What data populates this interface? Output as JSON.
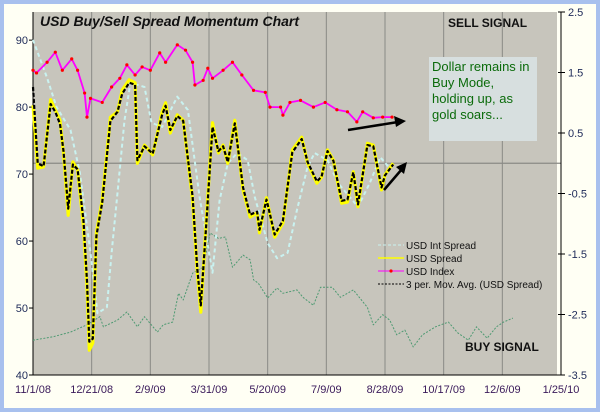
{
  "chart_data": {
    "type": "line",
    "title": "USD Buy/Sell Spread Momentum Chart",
    "x_axis": {
      "type": "date",
      "range": [
        "2008-11-01",
        "2010-01-25"
      ],
      "tick_labels": [
        "11/1/08",
        "12/21/08",
        "2/9/09",
        "3/31/09",
        "5/20/09",
        "7/9/09",
        "8/28/09",
        "10/17/09",
        "12/6/09",
        "1/25/10"
      ],
      "grid": true
    },
    "y_axis_left": {
      "range": [
        40,
        94.2
      ],
      "tick_labels": [
        "40",
        "50",
        "60",
        "70",
        "80",
        "90"
      ]
    },
    "y_axis_right": {
      "range": [
        -3.5,
        2.5
      ],
      "tick_labels": [
        "-3.5",
        "-2.5",
        "-1.5",
        "-0.5",
        "0.5",
        "1.5",
        "2.5"
      ],
      "reference_line": 0
    },
    "legend": {
      "placement": "bottom-right"
    },
    "annotations": {
      "sell": "SELL SIGNAL",
      "buy": "BUY SIGNAL",
      "note": "Dollar remains in Buy Mode, holding up, as gold soars..."
    },
    "series": [
      {
        "name": "USD Int Spread",
        "axis": "right",
        "color": "#c9f2f0",
        "style": "dashed",
        "x": [
          "2008-11-01",
          "2008-11-13",
          "2008-11-21",
          "2008-12-03",
          "2008-12-11",
          "2008-12-20",
          "2008-12-26",
          "2009-01-03",
          "2009-01-07",
          "2009-01-12",
          "2009-01-18",
          "2009-01-23",
          "2009-02-04",
          "2009-02-10",
          "2009-02-19",
          "2009-03-04",
          "2009-03-13",
          "2009-03-23",
          "2009-04-03",
          "2009-04-09",
          "2009-04-16",
          "2009-04-24",
          "2009-05-03",
          "2009-05-09",
          "2009-05-20",
          "2009-05-28",
          "2009-06-06",
          "2009-06-14",
          "2009-06-23",
          "2009-06-29",
          "2009-07-10",
          "2009-07-19",
          "2009-07-29",
          "2009-08-05",
          "2009-08-15",
          "2009-08-24",
          "2009-08-31"
        ],
        "y": [
          2.04,
          1.41,
          0.93,
          0.55,
          -0.16,
          -1.48,
          -2.48,
          -2.38,
          -1.48,
          -0.49,
          0.71,
          1.33,
          1.26,
          0.67,
          0.6,
          1.1,
          0.88,
          -0.56,
          -1.81,
          -0.61,
          0.0,
          0.17,
          0.05,
          -0.56,
          -1.32,
          -1.57,
          -1.48,
          -0.77,
          -0.06,
          0.17,
          0.05,
          -0.33,
          -0.56,
          -0.72,
          -0.33,
          0.1,
          -0.06
        ]
      },
      {
        "name": "USD Spread",
        "axis": "right",
        "color": "#ffff00",
        "style": "solid",
        "x": [
          "2008-11-01",
          "2008-11-05",
          "2008-11-10",
          "2008-11-16",
          "2008-11-20",
          "2008-11-24",
          "2008-11-27",
          "2008-12-01",
          "2008-12-05",
          "2008-12-09",
          "2008-12-14",
          "2008-12-17",
          "2008-12-19",
          "2008-12-22",
          "2008-12-25",
          "2008-12-30",
          "2009-01-06",
          "2009-01-12",
          "2009-01-16",
          "2009-01-22",
          "2009-01-27",
          "2009-01-29",
          "2009-02-04",
          "2009-02-11",
          "2009-02-19",
          "2009-02-22",
          "2009-02-26",
          "2009-03-04",
          "2009-03-09",
          "2009-03-17",
          "2009-03-21",
          "2009-03-24",
          "2009-03-28",
          "2009-04-03",
          "2009-04-08",
          "2009-04-12",
          "2009-04-16",
          "2009-04-22",
          "2009-04-29",
          "2009-05-05",
          "2009-05-11",
          "2009-05-13",
          "2009-05-19",
          "2009-05-26",
          "2009-06-02",
          "2009-06-10",
          "2009-06-18",
          "2009-06-23",
          "2009-07-01",
          "2009-07-05",
          "2009-07-10",
          "2009-07-15",
          "2009-07-22",
          "2009-07-27",
          "2009-08-01",
          "2009-08-05",
          "2009-08-13",
          "2009-08-18",
          "2009-08-25",
          "2009-08-28",
          "2009-09-04"
        ],
        "y": [
          0.96,
          -0.08,
          -0.06,
          1.05,
          0.88,
          0.71,
          0.17,
          -0.86,
          0.02,
          -0.11,
          -1.05,
          -2.05,
          -3.09,
          -2.97,
          -1.15,
          -0.61,
          0.76,
          0.85,
          1.21,
          1.38,
          1.33,
          0.0,
          0.3,
          0.14,
          0.85,
          1.0,
          0.5,
          0.8,
          0.71,
          -0.61,
          -1.81,
          -2.46,
          -1.15,
          0.67,
          0.17,
          0.3,
          0.0,
          0.71,
          -0.44,
          -0.89,
          -0.82,
          -1.15,
          -0.57,
          -1.22,
          -0.99,
          0.22,
          0.43,
          0.0,
          -0.33,
          -0.23,
          0.22,
          0.05,
          -0.66,
          -0.64,
          -0.14,
          -0.72,
          0.33,
          0.3,
          -0.44,
          -0.19,
          0.0
        ]
      },
      {
        "name": "USD Index",
        "axis": "left",
        "color": "#ff00ff",
        "marker_color": "#ff0000",
        "style": "solid-markers",
        "x": [
          "2008-11-01",
          "2008-11-04",
          "2008-11-13",
          "2008-11-20",
          "2008-11-26",
          "2008-12-04",
          "2008-12-09",
          "2008-12-15",
          "2008-12-17",
          "2008-12-20",
          "2008-12-30",
          "2009-01-07",
          "2009-01-14",
          "2009-01-20",
          "2009-01-27",
          "2009-02-02",
          "2009-02-09",
          "2009-02-17",
          "2009-02-22",
          "2009-03-04",
          "2009-03-11",
          "2009-03-17",
          "2009-03-19",
          "2009-03-26",
          "2009-03-30",
          "2009-04-03",
          "2009-04-12",
          "2009-04-20",
          "2009-04-28",
          "2009-05-08",
          "2009-05-18",
          "2009-05-22",
          "2009-05-31",
          "2009-06-02",
          "2009-06-08",
          "2009-06-17",
          "2009-06-28",
          "2009-07-08",
          "2009-07-18",
          "2009-07-27",
          "2009-08-04",
          "2009-08-09",
          "2009-08-18",
          "2009-08-26",
          "2009-09-03"
        ],
        "y": [
          85.5,
          85.1,
          86.7,
          88.2,
          85.5,
          87.2,
          85.5,
          82.1,
          78.5,
          81.3,
          80.7,
          83.0,
          84.3,
          86.3,
          84.8,
          86.0,
          85.5,
          88.1,
          86.7,
          89.3,
          88.5,
          86.7,
          83.3,
          84.0,
          85.8,
          84.3,
          85.5,
          86.7,
          84.8,
          82.5,
          82.2,
          80.0,
          80.0,
          78.8,
          80.7,
          81.0,
          80.0,
          80.7,
          79.6,
          79.3,
          77.8,
          79.3,
          78.4,
          78.5,
          78.5
        ]
      },
      {
        "name": "3 per. Mov. Avg. (USD Spread)",
        "axis": "right",
        "color": "#000000",
        "style": "dashed",
        "x": [
          "2008-11-01",
          "2008-11-05",
          "2008-11-10",
          "2008-11-16",
          "2008-11-20",
          "2008-11-24",
          "2008-11-27",
          "2008-12-01",
          "2008-12-05",
          "2008-12-09",
          "2008-12-14",
          "2008-12-17",
          "2008-12-19",
          "2008-12-22",
          "2008-12-25",
          "2008-12-30",
          "2009-01-06",
          "2009-01-12",
          "2009-01-16",
          "2009-01-22",
          "2009-01-27",
          "2009-01-29",
          "2009-02-04",
          "2009-02-11",
          "2009-02-19",
          "2009-02-22",
          "2009-02-26",
          "2009-03-04",
          "2009-03-09",
          "2009-03-17",
          "2009-03-21",
          "2009-03-24",
          "2009-03-28",
          "2009-04-03",
          "2009-04-08",
          "2009-04-12",
          "2009-04-16",
          "2009-04-22",
          "2009-04-29",
          "2009-05-05",
          "2009-05-11",
          "2009-05-13",
          "2009-05-19",
          "2009-05-26",
          "2009-06-02",
          "2009-06-10",
          "2009-06-18",
          "2009-06-23",
          "2009-07-01",
          "2009-07-05",
          "2009-07-10",
          "2009-07-15",
          "2009-07-22",
          "2009-07-27",
          "2009-08-01",
          "2009-08-05",
          "2009-08-13",
          "2009-08-18",
          "2009-08-25",
          "2009-08-28",
          "2009-09-04"
        ],
        "y": [
          1.26,
          0.0,
          -0.05,
          0.98,
          0.85,
          0.65,
          0.2,
          -0.75,
          -0.02,
          -0.1,
          -0.95,
          -1.95,
          -2.95,
          -2.9,
          -1.2,
          -0.65,
          0.7,
          0.85,
          1.15,
          1.33,
          1.3,
          0.05,
          0.28,
          0.16,
          0.8,
          0.95,
          0.55,
          0.78,
          0.7,
          -0.55,
          -1.75,
          -2.35,
          -1.2,
          0.6,
          0.2,
          0.28,
          0.02,
          0.66,
          -0.4,
          -0.85,
          -0.8,
          -1.1,
          -0.6,
          -1.18,
          -0.95,
          0.18,
          0.4,
          0.02,
          -0.3,
          -0.22,
          0.2,
          0.04,
          -0.62,
          -0.6,
          -0.15,
          -0.68,
          0.3,
          0.28,
          -0.4,
          -0.2,
          -0.02
        ]
      },
      {
        "axis": "left",
        "color": "#4e9a72",
        "style": "dotted",
        "x": [
          "2008-11-01",
          "2008-11-18",
          "2008-12-03",
          "2008-12-17",
          "2008-12-28",
          "2008-12-31",
          "2009-01-12",
          "2009-01-20",
          "2009-01-29",
          "2009-02-04",
          "2009-02-15",
          "2009-02-20",
          "2009-02-28",
          "2009-03-05",
          "2009-03-09",
          "2009-03-17",
          "2009-03-26",
          "2009-04-01",
          "2009-04-08",
          "2009-04-14",
          "2009-04-20",
          "2009-04-29",
          "2009-05-05",
          "2009-05-08",
          "2009-05-12",
          "2009-05-20",
          "2009-05-28",
          "2009-06-02",
          "2009-06-14",
          "2009-06-19",
          "2009-06-28",
          "2009-07-04",
          "2009-07-14",
          "2009-07-21",
          "2009-08-01",
          "2009-08-13",
          "2009-08-18",
          "2009-08-26",
          "2009-09-01",
          "2009-09-07",
          "2009-09-14",
          "2009-09-21",
          "2009-09-29",
          "2009-10-10",
          "2009-10-21",
          "2009-10-29",
          "2009-11-07",
          "2009-11-14",
          "2009-11-23",
          "2009-12-01",
          "2009-12-07",
          "2009-12-15"
        ],
        "y": [
          45.2,
          45.7,
          46.4,
          47.5,
          48.7,
          47.2,
          48.2,
          49.4,
          47.2,
          48.7,
          46.4,
          47.5,
          47.9,
          52.2,
          51.2,
          55.2,
          56.1,
          61.2,
          60.4,
          60.6,
          56.1,
          57.9,
          57.2,
          54.2,
          53.7,
          51.5,
          53.0,
          52.2,
          52.7,
          51.6,
          50.4,
          53.1,
          53.1,
          51.6,
          52.7,
          50.1,
          47.5,
          49.0,
          48.2,
          46.0,
          46.7,
          44.2,
          46.0,
          47.2,
          47.9,
          46.3,
          45.2,
          47.2,
          45.5,
          47.2,
          47.9,
          48.5
        ]
      }
    ]
  }
}
